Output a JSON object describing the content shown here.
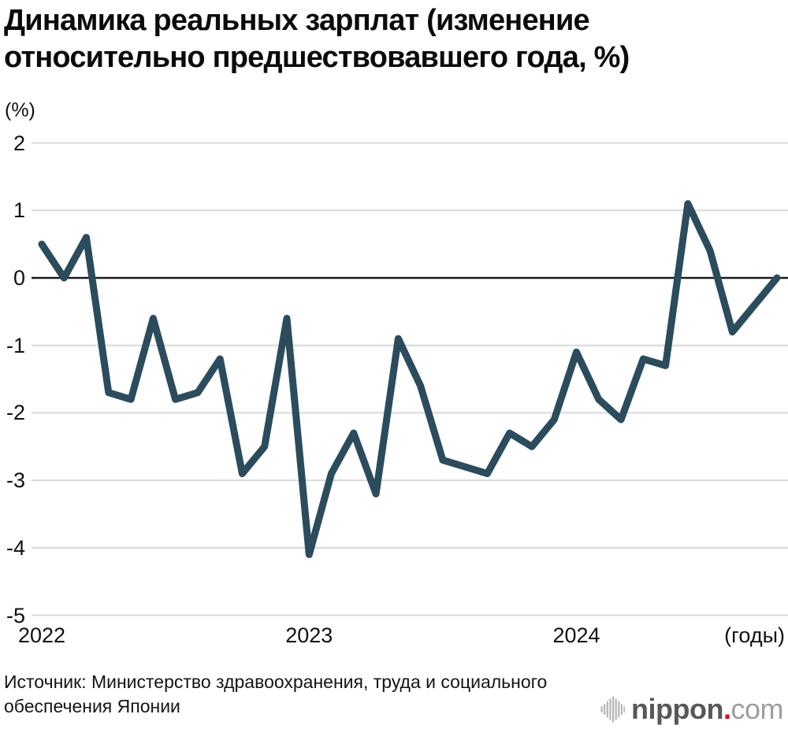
{
  "chart_data": {
    "type": "line",
    "title": "Динамика реальных зарплат (изменение относительно предшествовавшего года, %)",
    "y_axis_unit": "(%)",
    "x_axis_label": "(годы)",
    "ylim": [
      -5,
      2
    ],
    "y_ticks": [
      2,
      1,
      0,
      -1,
      -2,
      -3,
      -4,
      -5
    ],
    "x_ticks": [
      "2022",
      "2023",
      "2024"
    ],
    "grid": true,
    "legend": "none",
    "line_color": "#2b4c5c",
    "zero_line_color": "#1a1a1a",
    "grid_color": "#d9d9d9",
    "series": [
      {
        "name": "Реальные зарплаты",
        "x": [
          "2022-01",
          "2022-02",
          "2022-03",
          "2022-04",
          "2022-05",
          "2022-06",
          "2022-07",
          "2022-08",
          "2022-09",
          "2022-10",
          "2022-11",
          "2022-12",
          "2023-01",
          "2023-02",
          "2023-03",
          "2023-04",
          "2023-05",
          "2023-06",
          "2023-07",
          "2023-08",
          "2023-09",
          "2023-10",
          "2023-11",
          "2023-12",
          "2024-01",
          "2024-02",
          "2024-03",
          "2024-04",
          "2024-05",
          "2024-06",
          "2024-07",
          "2024-08",
          "2024-09",
          "2024-10"
        ],
        "values": [
          0.5,
          0.0,
          0.6,
          -1.7,
          -1.8,
          -0.6,
          -1.8,
          -1.7,
          -1.2,
          -2.9,
          -2.5,
          -0.6,
          -4.1,
          -2.9,
          -2.3,
          -3.2,
          -0.9,
          -1.6,
          -2.7,
          -2.8,
          -2.9,
          -2.3,
          -2.5,
          -2.1,
          -1.1,
          -1.8,
          -2.1,
          -1.2,
          -1.3,
          1.1,
          0.4,
          -0.8,
          -0.4,
          0.0
        ]
      }
    ]
  },
  "footer": {
    "source": "Источник: Министерство здравоохранения, труда и социального обеспечения Японии",
    "logo": {
      "brand": "nippon",
      "separator": ".",
      "tld": "com"
    }
  }
}
